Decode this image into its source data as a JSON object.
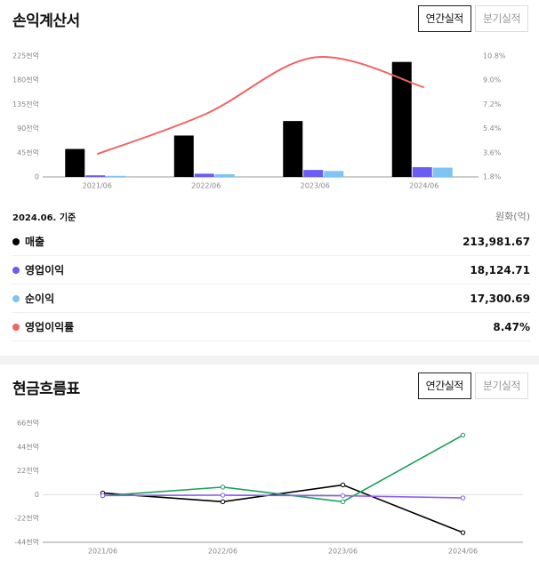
{
  "income": {
    "title": "손익계산서",
    "tabs": {
      "annual": "연간실적",
      "quarter": "분기실적"
    },
    "as_of": "2024.06. 기준",
    "unit": "원화(억)",
    "legend": [
      {
        "name": "매출",
        "value": "213,981.67",
        "color": "#000000"
      },
      {
        "name": "영업이익",
        "value": "18,124.71",
        "color": "#6b5cf6"
      },
      {
        "name": "순이익",
        "value": "17,300.69",
        "color": "#7fc4f2"
      },
      {
        "name": "영업이익률",
        "value": "8.47%",
        "color": "#f26464"
      }
    ]
  },
  "cashflow": {
    "title": "현금흐름표",
    "tabs": {
      "annual": "연간실적",
      "quarter": "분기실적"
    }
  },
  "chart_data": [
    {
      "type": "bar",
      "categories": [
        "2021/06",
        "2022/06",
        "2023/06",
        "2024/06"
      ],
      "y_ticks": [
        "0",
        "45천억",
        "90천억",
        "135천억",
        "180천억",
        "225천억"
      ],
      "ylim": [
        0,
        225000
      ],
      "y2_ticks": [
        "1.8%",
        "3.6%",
        "5.4%",
        "7.2%",
        "9.0%",
        "10.8%"
      ],
      "y2lim": [
        1.8,
        10.8
      ],
      "series": [
        {
          "name": "매출",
          "type": "bar",
          "color": "#000000",
          "values": [
            52000,
            77000,
            104000,
            213981.67
          ]
        },
        {
          "name": "영업이익",
          "type": "bar",
          "color": "#6b5cf6",
          "values": [
            3000,
            6000,
            13000,
            18124.71
          ]
        },
        {
          "name": "순이익",
          "type": "bar",
          "color": "#7fc4f2",
          "values": [
            2000,
            5000,
            11000,
            17300.69
          ]
        },
        {
          "name": "영업이익률",
          "type": "line",
          "axis": "right",
          "color": "#f26464",
          "values": [
            3.5,
            6.5,
            10.7,
            8.47
          ]
        }
      ]
    },
    {
      "type": "line",
      "categories": [
        "2021/06",
        "2022/06",
        "2023/06",
        "2024/06"
      ],
      "y_ticks": [
        "-44천억",
        "-22천억",
        "0",
        "22천억",
        "44천억",
        "66천억"
      ],
      "ylim": [
        -44000,
        66000
      ],
      "series": [
        {
          "color": "#000000",
          "values": [
            1500,
            -6500,
            9000,
            -35000
          ]
        },
        {
          "color": "#1aa05a",
          "values": [
            -1000,
            7000,
            -6500,
            55000
          ]
        },
        {
          "color": "#8b5cf6",
          "values": [
            -800,
            -500,
            -1000,
            -3000
          ]
        }
      ]
    }
  ]
}
